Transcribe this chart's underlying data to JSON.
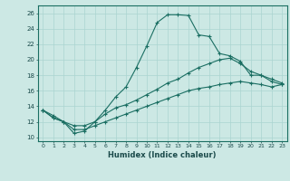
{
  "xlabel": "Humidex (Indice chaleur)",
  "bg_color": "#cce8e4",
  "grid_color": "#aad4d0",
  "line_color": "#1a6e62",
  "xlim": [
    -0.5,
    23.5
  ],
  "ylim": [
    9.5,
    27
  ],
  "xticks": [
    0,
    1,
    2,
    3,
    4,
    5,
    6,
    7,
    8,
    9,
    10,
    11,
    12,
    13,
    14,
    15,
    16,
    17,
    18,
    19,
    20,
    21,
    22,
    23
  ],
  "yticks": [
    10,
    12,
    14,
    16,
    18,
    20,
    22,
    24,
    26
  ],
  "line1_x": [
    0,
    1,
    2,
    3,
    4,
    5,
    6,
    7,
    8,
    9,
    10,
    11,
    12,
    13,
    14,
    15,
    16,
    17,
    18,
    19,
    20,
    21,
    22,
    23
  ],
  "line1_y": [
    13.5,
    12.5,
    12.0,
    10.5,
    10.8,
    12.0,
    13.5,
    15.2,
    16.5,
    19.0,
    21.8,
    24.8,
    25.8,
    25.8,
    25.7,
    23.2,
    23.0,
    20.8,
    20.5,
    19.8,
    18.0,
    18.0,
    17.2,
    16.8
  ],
  "line2_x": [
    0,
    1,
    2,
    3,
    4,
    5,
    6,
    7,
    8,
    9,
    10,
    11,
    12,
    13,
    14,
    15,
    16,
    17,
    18,
    19,
    20,
    21,
    22,
    23
  ],
  "line2_y": [
    13.5,
    12.8,
    12.0,
    11.5,
    11.5,
    12.0,
    13.0,
    13.8,
    14.2,
    14.8,
    15.5,
    16.2,
    17.0,
    17.5,
    18.3,
    19.0,
    19.5,
    20.0,
    20.2,
    19.5,
    18.5,
    18.0,
    17.5,
    17.0
  ],
  "line3_x": [
    0,
    1,
    2,
    3,
    4,
    5,
    6,
    7,
    8,
    9,
    10,
    11,
    12,
    13,
    14,
    15,
    16,
    17,
    18,
    19,
    20,
    21,
    22,
    23
  ],
  "line3_y": [
    13.5,
    12.5,
    12.0,
    11.0,
    11.0,
    11.5,
    12.0,
    12.5,
    13.0,
    13.5,
    14.0,
    14.5,
    15.0,
    15.5,
    16.0,
    16.3,
    16.5,
    16.8,
    17.0,
    17.2,
    17.0,
    16.8,
    16.5,
    16.8
  ]
}
